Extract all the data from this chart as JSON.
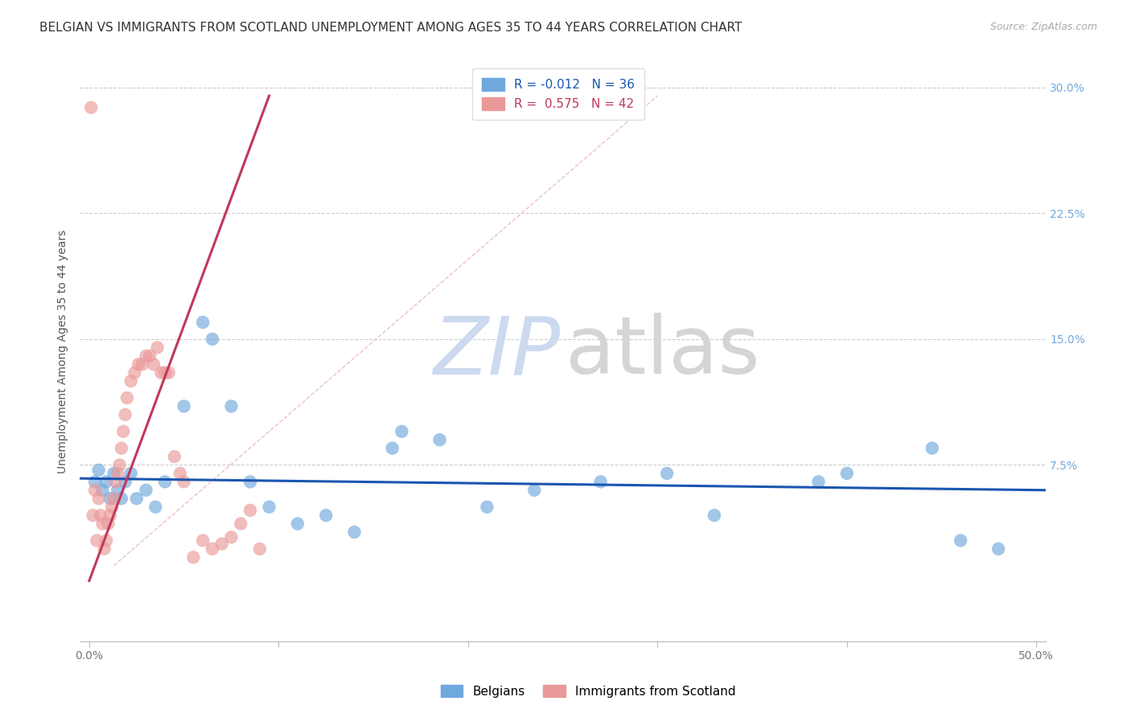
{
  "title": "BELGIAN VS IMMIGRANTS FROM SCOTLAND UNEMPLOYMENT AMONG AGES 35 TO 44 YEARS CORRELATION CHART",
  "source": "Source: ZipAtlas.com",
  "ylabel": "Unemployment Among Ages 35 to 44 years",
  "xlim": [
    -0.005,
    0.505
  ],
  "ylim": [
    -0.03,
    0.315
  ],
  "yticks_right": [
    0.075,
    0.15,
    0.225,
    0.3
  ],
  "ytick_right_labels": [
    "7.5%",
    "15.0%",
    "22.5%",
    "30.0%"
  ],
  "legend_blue_r": "R = -0.012",
  "legend_blue_n": "N = 36",
  "legend_pink_r": "R =  0.575",
  "legend_pink_n": "N = 42",
  "blue_color": "#6fa8dc",
  "pink_color": "#ea9999",
  "trendline_blue_color": "#1a56b0",
  "trendline_pink_color": "#c0395a",
  "grid_color": "#cccccc",
  "watermark_color_zip": "#ccd9ef",
  "watermark_color_atlas": "#d5d5d5",
  "blue_scatter_x": [
    0.003,
    0.005,
    0.007,
    0.009,
    0.011,
    0.013,
    0.015,
    0.017,
    0.019,
    0.022,
    0.025,
    0.03,
    0.035,
    0.04,
    0.05,
    0.06,
    0.065,
    0.075,
    0.085,
    0.095,
    0.11,
    0.125,
    0.14,
    0.16,
    0.165,
    0.185,
    0.21,
    0.235,
    0.27,
    0.305,
    0.33,
    0.385,
    0.4,
    0.445,
    0.46,
    0.48
  ],
  "blue_scatter_y": [
    0.065,
    0.072,
    0.06,
    0.065,
    0.055,
    0.07,
    0.06,
    0.055,
    0.065,
    0.07,
    0.055,
    0.06,
    0.05,
    0.065,
    0.11,
    0.16,
    0.15,
    0.11,
    0.065,
    0.05,
    0.04,
    0.045,
    0.035,
    0.085,
    0.095,
    0.09,
    0.05,
    0.06,
    0.065,
    0.07,
    0.045,
    0.065,
    0.07,
    0.085,
    0.03,
    0.025
  ],
  "pink_scatter_x": [
    0.001,
    0.002,
    0.003,
    0.004,
    0.005,
    0.006,
    0.007,
    0.008,
    0.009,
    0.01,
    0.011,
    0.012,
    0.013,
    0.014,
    0.015,
    0.016,
    0.017,
    0.018,
    0.019,
    0.02,
    0.022,
    0.024,
    0.026,
    0.028,
    0.03,
    0.032,
    0.034,
    0.036,
    0.038,
    0.04,
    0.042,
    0.045,
    0.048,
    0.05,
    0.055,
    0.06,
    0.065,
    0.07,
    0.075,
    0.08,
    0.085,
    0.09
  ],
  "pink_scatter_y": [
    0.288,
    0.045,
    0.06,
    0.03,
    0.055,
    0.045,
    0.04,
    0.025,
    0.03,
    0.04,
    0.045,
    0.05,
    0.055,
    0.065,
    0.07,
    0.075,
    0.085,
    0.095,
    0.105,
    0.115,
    0.125,
    0.13,
    0.135,
    0.135,
    0.14,
    0.14,
    0.135,
    0.145,
    0.13,
    0.13,
    0.13,
    0.08,
    0.07,
    0.065,
    0.02,
    0.03,
    0.025,
    0.028,
    0.032,
    0.04,
    0.048,
    0.025
  ],
  "blue_trend_x": [
    -0.005,
    0.505
  ],
  "blue_trend_y": [
    0.067,
    0.06
  ],
  "pink_trend_x": [
    0.0,
    0.095
  ],
  "pink_trend_y": [
    0.006,
    0.295
  ],
  "diag_line_x": [
    0.013,
    0.3
  ],
  "diag_line_y": [
    0.015,
    0.295
  ],
  "title_fontsize": 11,
  "axis_label_fontsize": 10,
  "tick_fontsize": 10,
  "legend_fontsize": 11
}
